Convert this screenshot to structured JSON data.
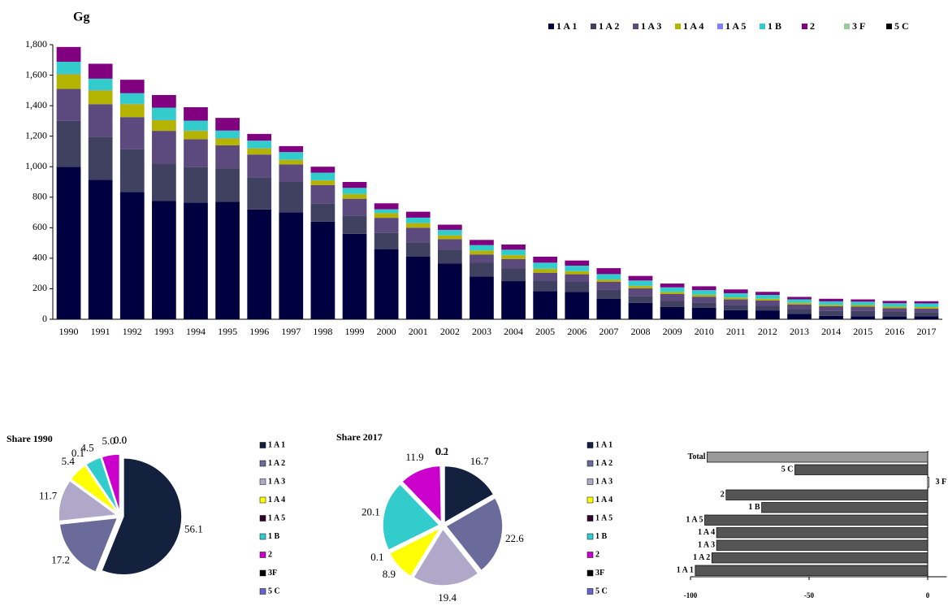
{
  "chart_data": [
    {
      "type": "stacked_bar",
      "title": "Gg",
      "categories": [
        "1990",
        "1991",
        "1992",
        "1993",
        "1994",
        "1995",
        "1996",
        "1997",
        "1998",
        "1999",
        "2000",
        "2001",
        "2002",
        "2003",
        "2004",
        "2005",
        "2006",
        "2007",
        "2008",
        "2009",
        "2010",
        "2011",
        "2012",
        "2013",
        "2014",
        "2015",
        "2016",
        "2017"
      ],
      "ylim": [
        0,
        1800
      ],
      "yticks": [
        0,
        200,
        400,
        600,
        800,
        {
          "value": 1000,
          "label": "1,000"
        },
        {
          "value": 1200,
          "label": "1,200"
        },
        {
          "value": 1400,
          "label": "1,400"
        },
        {
          "value": 1600,
          "label": "1,600"
        },
        {
          "value": 1800,
          "label": "1,800"
        }
      ],
      "legend": "top-right",
      "series": [
        {
          "name": "1 A 1",
          "color": "#000040",
          "values": [
            1000,
            915,
            835,
            775,
            765,
            770,
            720,
            700,
            640,
            560,
            460,
            410,
            365,
            280,
            250,
            185,
            180,
            135,
            108,
            80,
            75,
            60,
            58,
            35,
            22,
            20,
            18,
            20
          ]
        },
        {
          "name": "1 A 2",
          "color": "#404060",
          "values": [
            300,
            280,
            280,
            245,
            235,
            220,
            210,
            200,
            120,
            120,
            105,
            95,
            90,
            90,
            85,
            70,
            65,
            60,
            45,
            40,
            35,
            35,
            30,
            32,
            33,
            35,
            30,
            27
          ]
        },
        {
          "name": "1 A 3",
          "color": "#5c4a7e",
          "values": [
            210,
            215,
            210,
            215,
            180,
            150,
            150,
            115,
            120,
            110,
            100,
            95,
            70,
            55,
            60,
            50,
            50,
            50,
            50,
            45,
            38,
            35,
            35,
            30,
            30,
            28,
            25,
            23
          ]
        },
        {
          "name": "1 A 4",
          "color": "#b3b300",
          "values": [
            96,
            90,
            85,
            70,
            55,
            45,
            40,
            30,
            30,
            30,
            30,
            30,
            25,
            25,
            25,
            25,
            20,
            15,
            15,
            13,
            12,
            12,
            11,
            11,
            10,
            10,
            10,
            10
          ]
        },
        {
          "name": "1 A 5",
          "color": "#8080ff",
          "values": [
            2,
            2,
            2,
            2,
            2,
            2,
            1,
            1,
            1,
            1,
            1,
            1,
            1,
            1,
            1,
            1,
            1,
            1,
            1,
            1,
            1,
            0.5,
            0.5,
            0.5,
            0.2,
            0.2,
            0.1,
            0.1
          ]
        },
        {
          "name": "1 B",
          "color": "#33cccc",
          "values": [
            80,
            75,
            70,
            80,
            65,
            50,
            50,
            50,
            50,
            40,
            25,
            35,
            35,
            35,
            35,
            40,
            35,
            35,
            35,
            30,
            30,
            28,
            25,
            22,
            22,
            22,
            22,
            24
          ]
        },
        {
          "name": "2",
          "color": "#800080",
          "values": [
            97,
            98,
            88,
            83,
            88,
            83,
            44,
            39,
            39,
            39,
            39,
            39,
            34,
            34,
            34,
            39,
            34,
            39,
            30,
            25,
            25,
            25,
            20,
            16,
            17,
            15,
            15,
            14
          ]
        },
        {
          "name": "3 F",
          "color": "#99cc99",
          "values": [
            0,
            0,
            0,
            0,
            0,
            0,
            0,
            0,
            0,
            0,
            0,
            0,
            0,
            0,
            0,
            0,
            0,
            0,
            0,
            0,
            0,
            0,
            0,
            0,
            0,
            0,
            0,
            0.2
          ]
        },
        {
          "name": "5 C",
          "color": "#000000",
          "values": [
            0,
            0,
            0,
            0,
            0,
            0,
            0,
            0,
            0,
            0,
            0,
            0,
            0,
            0,
            0,
            0,
            0,
            0,
            0,
            0,
            0,
            0,
            0,
            0,
            0,
            0,
            0,
            0.1
          ]
        }
      ]
    },
    {
      "type": "pie",
      "title": "Share 1990",
      "categories": [
        "1 A 1",
        "1 A 2",
        "1 A 3",
        "1 A 4",
        "1 A 5",
        "1 B",
        "2",
        "3F",
        "5 C"
      ],
      "values": [
        56.1,
        17.2,
        11.7,
        5.4,
        0.1,
        4.5,
        5.0,
        0.0,
        0.0
      ],
      "value_labels": [
        "56.1",
        "17.2",
        "11.7",
        "5.4",
        "0.1",
        "4.5",
        "5.0",
        "0.0",
        "0.0"
      ],
      "colors": [
        "#13213f",
        "#6b6b9b",
        "#b0a8c8",
        "#ffff00",
        "#330033",
        "#33cccc",
        "#cc00cc",
        "#000000",
        "#6666cc"
      ]
    },
    {
      "type": "pie",
      "title": "Share 2017",
      "categories": [
        "1 A 1",
        "1 A 2",
        "1 A 3",
        "1 A 4",
        "1 A 5",
        "1 B",
        "2",
        "3F",
        "5 C"
      ],
      "values": [
        16.7,
        22.6,
        19.4,
        8.9,
        0.1,
        20.1,
        11.9,
        0.2,
        0.1
      ],
      "value_labels": [
        "16.7",
        "22.6",
        "19.4",
        "8.9",
        "0.1",
        "20.1",
        "11.9",
        "0.2",
        "0.1"
      ],
      "colors": [
        "#13213f",
        "#6b6b9b",
        "#b0a8c8",
        "#ffff00",
        "#330033",
        "#33cccc",
        "#cc00cc",
        "#000000",
        "#6666cc"
      ]
    },
    {
      "type": "hbar",
      "categories": [
        "1 A 1",
        "1 A 2",
        "1 A 3",
        "1 A 4",
        "1 A 5",
        "1 B",
        "2",
        "3 F",
        "5 C",
        "Total"
      ],
      "values": [
        -98,
        -91,
        -89,
        -89,
        -94,
        -70,
        -85,
        0.5,
        -56,
        -93
      ],
      "colors": [
        "#555555",
        "#555555",
        "#555555",
        "#555555",
        "#555555",
        "#555555",
        "#555555",
        "#ffffff",
        "#555555",
        "#999999"
      ],
      "xlim": [
        -100,
        8
      ],
      "xticks": [
        -100,
        -50,
        0
      ]
    }
  ]
}
